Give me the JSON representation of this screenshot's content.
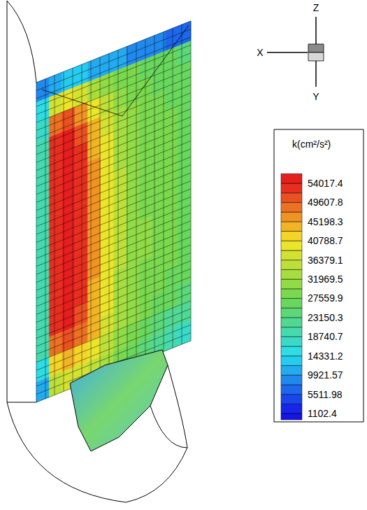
{
  "chart_data": {
    "type": "contour",
    "colorbar": {
      "title": "k(cm²/s²)",
      "range": [
        1102.4,
        54017.4
      ],
      "ticks": [
        1102.4,
        5511.98,
        9921.57,
        14331.2,
        18740.7,
        23150.3,
        27559.9,
        31969.5,
        36379.1,
        40788.7,
        45198.3,
        49607.8,
        54017.4
      ]
    },
    "cells": [
      [
        8000,
        12000,
        14000,
        13000,
        12000,
        11000,
        10000,
        9000,
        8500,
        8000,
        7500,
        7000
      ],
      [
        15000,
        38000,
        40000,
        38000,
        34000,
        31000,
        29000,
        28000,
        27000,
        26000,
        26000,
        25000
      ],
      [
        18000,
        48000,
        50000,
        46000,
        40000,
        35000,
        31000,
        29000,
        28000,
        27000,
        27000,
        26000
      ],
      [
        20000,
        52000,
        54500,
        51000,
        44000,
        38000,
        33000,
        30000,
        29000,
        28000,
        27500,
        27000
      ],
      [
        20000,
        53000,
        55000,
        52000,
        45000,
        39000,
        34000,
        31000,
        29000,
        28000,
        28000,
        27000
      ],
      [
        20000,
        53500,
        55000,
        52500,
        45500,
        39000,
        34000,
        31000,
        29500,
        28500,
        28000,
        27000
      ],
      [
        20000,
        54000,
        55500,
        53000,
        46000,
        39500,
        34500,
        31500,
        29500,
        28500,
        28000,
        27000
      ],
      [
        20000,
        54000,
        55500,
        53000,
        46000,
        39500,
        34500,
        31500,
        29500,
        28500,
        28000,
        27500
      ],
      [
        20000,
        54000,
        55500,
        53000,
        46000,
        39500,
        34500,
        31500,
        29500,
        28500,
        28000,
        27500
      ],
      [
        20000,
        54000,
        55500,
        53000,
        46000,
        39500,
        34500,
        31500,
        30000,
        28500,
        28000,
        27500
      ],
      [
        20000,
        54000,
        55000,
        52500,
        45500,
        39500,
        34500,
        31500,
        30000,
        28500,
        28000,
        27500
      ],
      [
        20000,
        53500,
        55000,
        52000,
        45000,
        39000,
        34000,
        31000,
        29500,
        28500,
        28000,
        27000
      ],
      [
        20000,
        53000,
        54500,
        51500,
        45000,
        39000,
        34000,
        31000,
        29000,
        28000,
        27500,
        27000
      ],
      [
        19000,
        48000,
        50000,
        48000,
        43000,
        38000,
        33000,
        30000,
        28000,
        27000,
        26000,
        25000
      ],
      [
        16000,
        42000,
        44000,
        42000,
        39000,
        35000,
        31000,
        28000,
        26000,
        24000,
        23000,
        22000
      ],
      [
        12000,
        36000,
        38000,
        37000,
        35000,
        32000,
        29000,
        26000,
        24000,
        22000,
        20000,
        18000
      ]
    ],
    "axis_labels": {
      "x": "X",
      "y": "Y",
      "z": "Z"
    },
    "tick_labels": false
  }
}
